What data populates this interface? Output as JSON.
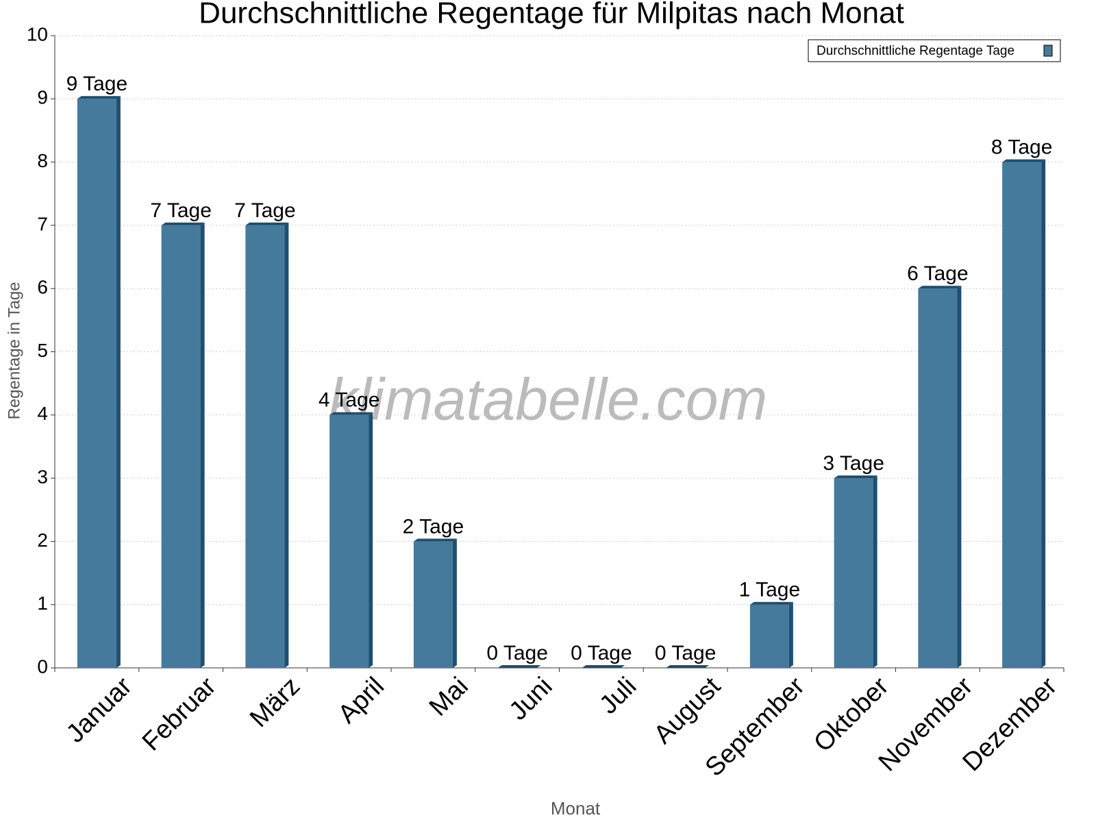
{
  "chart_data": {
    "type": "bar",
    "title": "Durchschnittliche Regentage für Milpitas nach Monat",
    "x_label": "Monat",
    "y_label": "Regentage in Tage",
    "watermark": "klimatabelle.com",
    "categories": [
      "Januar",
      "Februar",
      "März",
      "April",
      "Mai",
      "Juni",
      "Juli",
      "August",
      "September",
      "Oktober",
      "November",
      "Dezember"
    ],
    "series": [
      {
        "name": "Durchschnittliche Regentage Tage",
        "color": "#467a9c",
        "values": [
          9,
          7,
          7,
          4,
          2,
          0,
          0,
          0,
          1,
          3,
          6,
          8
        ],
        "value_labels": [
          "9 Tage",
          "7 Tage",
          "7 Tage",
          "4 Tage",
          "2 Tage",
          "0 Tage",
          "0 Tage",
          "0 Tage",
          "1 Tage",
          "3 Tage",
          "6 Tage",
          "8 Tage"
        ]
      }
    ],
    "ylim": [
      0,
      10
    ],
    "yticks": [
      0,
      1,
      2,
      3,
      4,
      5,
      6,
      7,
      8,
      9,
      10
    ],
    "grid": true,
    "legend": "top-right"
  }
}
